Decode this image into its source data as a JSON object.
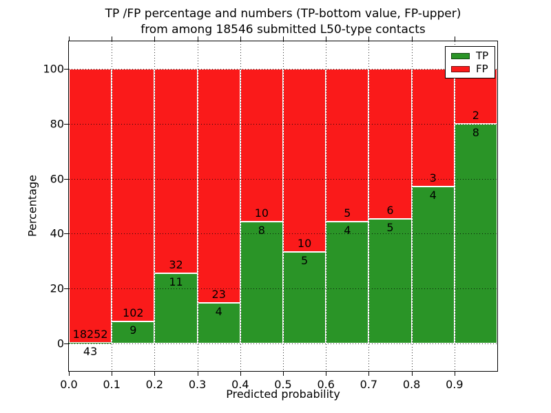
{
  "figure": {
    "title_line1": "TP /FP percentage and numbers (TP-bottom value, FP-upper)",
    "title_line2": "from among 18546 submitted L50-type contacts"
  },
  "chart_data": {
    "type": "bar",
    "stacked": true,
    "orientation": "vertical",
    "title": "TP /FP percentage and numbers (TP-bottom value, FP-upper) from among 18546 submitted L50-type contacts",
    "xlabel": "Predicted probability",
    "ylabel": "Percentage",
    "total_contacts": 18546,
    "bin_width": 0.1,
    "bin_starts": [
      0.0,
      0.1,
      0.2,
      0.3,
      0.4,
      0.5,
      0.6,
      0.7,
      0.8,
      0.9
    ],
    "series": [
      {
        "name": "TP",
        "color": "#2a9427",
        "counts": [
          43,
          9,
          11,
          4,
          8,
          5,
          4,
          5,
          4,
          8
        ]
      },
      {
        "name": "FP",
        "color": "#fa1a1a",
        "counts": [
          18252,
          102,
          32,
          23,
          10,
          10,
          5,
          6,
          3,
          2
        ]
      }
    ],
    "tp_percent": [
      0.24,
      8.11,
      25.58,
      14.81,
      44.44,
      33.33,
      44.44,
      45.45,
      57.14,
      80.0
    ],
    "xlim": [
      0.0,
      1.0
    ],
    "ylim": [
      -10,
      110
    ],
    "xtick_values": [
      0.0,
      0.1,
      0.2,
      0.3,
      0.4,
      0.5,
      0.6,
      0.7,
      0.8,
      0.9
    ],
    "xtick_labels": [
      "0.0",
      "0.1",
      "0.2",
      "0.3",
      "0.4",
      "0.5",
      "0.6",
      "0.7",
      "0.8",
      "0.9"
    ],
    "ytick_values": [
      0,
      20,
      40,
      60,
      80,
      100
    ],
    "ytick_labels": [
      "0",
      "20",
      "40",
      "60",
      "80",
      "100"
    ],
    "grid": "dotted",
    "grid_color": "#000000",
    "bar_edge_color": "#ffffff",
    "background_color": "#ffffff",
    "text_color": "#000000",
    "legend": {
      "position": "upper right",
      "entries": [
        {
          "label": "TP",
          "color": "#2a9427"
        },
        {
          "label": "FP",
          "color": "#fa1a1a"
        }
      ]
    }
  }
}
